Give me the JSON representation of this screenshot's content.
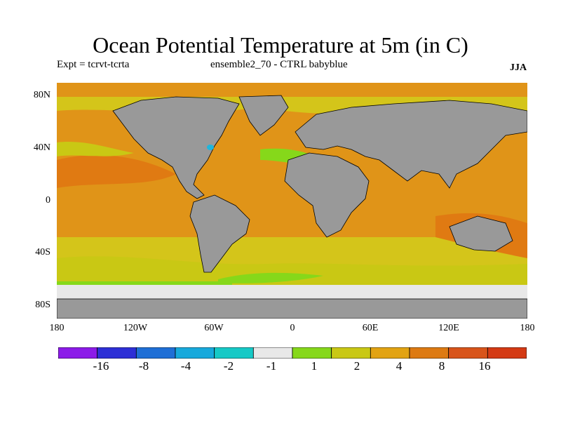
{
  "title": "Ocean Potential Temperature at 5m (in C)",
  "left_subtitle": "Expt = tcrvt-tcrta",
  "center_subtitle": "ensemble2_70 - CTRL babyblue",
  "season": "JJA",
  "latitude_labels": [
    "80N",
    "40N",
    "0",
    "40S",
    "80S"
  ],
  "longitude_labels": [
    "180",
    "120W",
    "60W",
    "0",
    "60E",
    "120E",
    "180"
  ],
  "colorbar": {
    "labels": [
      "-16",
      "-8",
      "-4",
      "-2",
      "-1",
      "1",
      "2",
      "4",
      "8",
      "16"
    ],
    "colors": [
      "#8c1be8",
      "#2d2fd6",
      "#1f6fd6",
      "#17a9dc",
      "#16c9c6",
      "#e8e8e8",
      "#86d81a",
      "#c9c814",
      "#e2a312",
      "#dd7a12",
      "#d8541a",
      "#d43a14"
    ]
  },
  "colors": {
    "land": "#999999",
    "ocean_main": "#e09418",
    "ocean_warm": "#e07a12",
    "ocean_yellow": "#d4c51a",
    "ocean_green": "#8ad61c",
    "antarctic": "#e8e8e8",
    "cyan": "#1fb6dc"
  },
  "chart_data": {
    "type": "heatmap",
    "title": "Ocean Potential Temperature at 5m (in C)",
    "xlabel": "",
    "ylabel": "",
    "x_range": [
      -180,
      180
    ],
    "y_range": [
      -90,
      90
    ],
    "legend_placement": "bottom",
    "contour_levels": [
      -16,
      -8,
      -4,
      -2,
      -1,
      1,
      2,
      4,
      8,
      16
    ]
  }
}
